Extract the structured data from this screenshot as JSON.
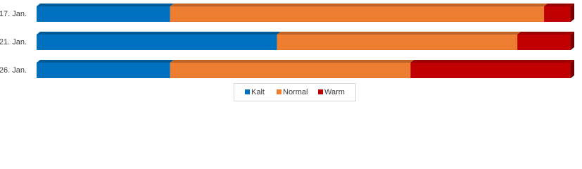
{
  "chart_data": {
    "type": "stacked-bar-100",
    "categories": [
      "17. Jan.",
      "21. Jan.",
      "26. Jan."
    ],
    "series": [
      {
        "name": "Kalt",
        "color": "#0070c0",
        "values": [
          25,
          45,
          25
        ]
      },
      {
        "name": "Normal",
        "color": "#ed7d31",
        "values": [
          70,
          45,
          45
        ]
      },
      {
        "name": "Warm",
        "color": "#c00000",
        "values": [
          5,
          10,
          30
        ]
      }
    ],
    "legend": "bottom"
  }
}
